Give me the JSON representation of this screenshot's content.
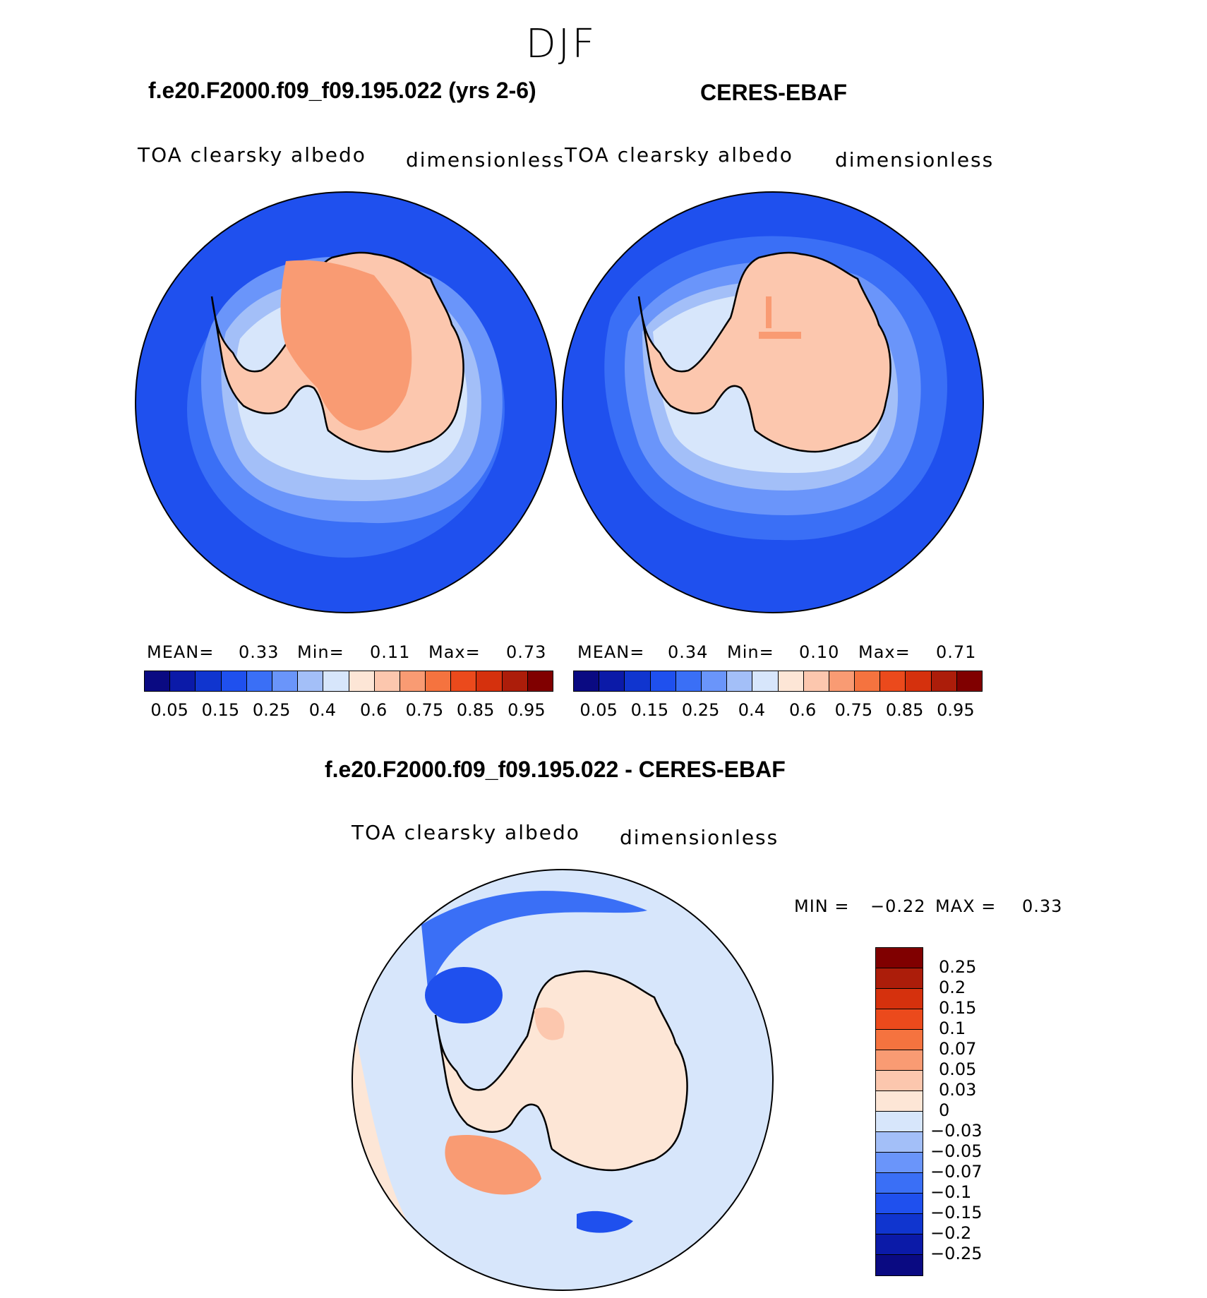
{
  "season": "DJF",
  "panel_left": {
    "case": "f.e20.F2000.f09_f09.195.022 (yrs 2-6)",
    "variable": "TOA clearsky albedo",
    "units": "dimensionless",
    "mean_label": "MEAN=",
    "mean": "0.33",
    "min_label": "Min=",
    "min": "0.11",
    "max_label": "Max=",
    "max": "0.73"
  },
  "panel_right": {
    "case": "CERES-EBAF",
    "variable": "TOA clearsky albedo",
    "units": "dimensionless",
    "mean_label": "MEAN=",
    "mean": "0.34",
    "min_label": "Min=",
    "min": "0.10",
    "max_label": "Max=",
    "max": "0.71"
  },
  "panel_diff": {
    "case": "f.e20.F2000.f09_f09.195.022 - CERES-EBAF",
    "variable": "TOA clearsky albedo",
    "units": "dimensionless",
    "min_label": "MIN =",
    "min": "−0.22",
    "max_label": "MAX =",
    "max": "0.33"
  },
  "colorbar_abs": {
    "colors": [
      "#0a0a82",
      "#0b1aa8",
      "#1035cf",
      "#1f50ee",
      "#3a6ff6",
      "#6a95fa",
      "#a3bff8",
      "#d7e6fb",
      "#fde6d6",
      "#fcc7ae",
      "#f99b73",
      "#f5733f",
      "#eb4a1c",
      "#d5310d",
      "#ac1d0a",
      "#800000"
    ],
    "tick_labels": [
      "0.05",
      "0.15",
      "0.25",
      "0.4",
      "0.6",
      "0.75",
      "0.85",
      "0.95"
    ]
  },
  "colorbar_diff": {
    "colors": [
      "#800000",
      "#ac1d0a",
      "#d5310d",
      "#eb4a1c",
      "#f5733f",
      "#f99b73",
      "#fcc7ae",
      "#fde6d6",
      "#d7e6fb",
      "#a3bff8",
      "#6a95fa",
      "#3a6ff6",
      "#1f50ee",
      "#1035cf",
      "#0b1aa8",
      "#0a0a82"
    ],
    "tick_labels": [
      "0.25",
      "0.2",
      "0.15",
      "0.1",
      "0.07",
      "0.05",
      "0.03",
      "0",
      "−0.03",
      "−0.05",
      "−0.07",
      "−0.1",
      "−0.15",
      "−0.2",
      "−0.25"
    ]
  },
  "map_colors": {
    "ocean": "#1f50ee",
    "ocean_mid": "#3a6ff6",
    "ocean_light": "#6a95fa",
    "sea_ice": "#a3bff8",
    "ice_edge": "#d7e6fb",
    "ice_sheet": "#fcc7ae",
    "ice_sheet_high": "#f99b73",
    "diff_bg": "#d7e6fb",
    "diff_land": "#fde6d6",
    "diff_pos": "#f5733f",
    "diff_neg": "#1f50ee"
  }
}
